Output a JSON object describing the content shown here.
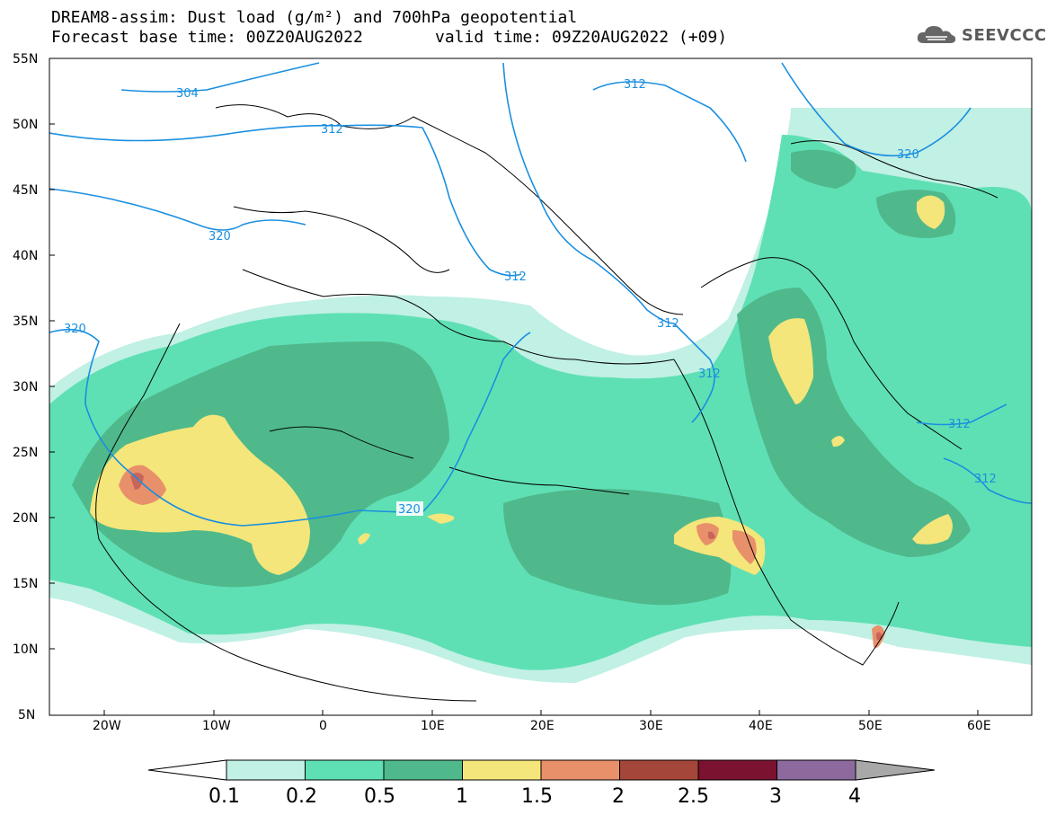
{
  "header": {
    "line1": "DREAM8-assim: Dust load (g/m²) and 700hPa geopotential",
    "line2_left": "Forecast base time: 00Z20AUG2022",
    "line2_right": "valid time: 09Z20AUG2022 (+09)",
    "logo_text": "SEEVCCC"
  },
  "axes": {
    "lat_labels": [
      "55N",
      "50N",
      "45N",
      "40N",
      "35N",
      "30N",
      "25N",
      "20N",
      "15N",
      "10N",
      "5N"
    ],
    "lon_labels": [
      "20W",
      "10W",
      "0",
      "10E",
      "20E",
      "30E",
      "40E",
      "50E",
      "60E"
    ]
  },
  "contour_labels": [
    "304",
    "312",
    "312",
    "320",
    "320",
    "312",
    "312",
    "312",
    "320",
    "312",
    "312"
  ],
  "colorbar": {
    "ticks": [
      "0.1",
      "0.2",
      "0.5",
      "1",
      "1.5",
      "2",
      "2.5",
      "3",
      "4"
    ],
    "colors": [
      "#c1f0e4",
      "#5fe0b4",
      "#4fb98c",
      "#f4e67a",
      "#e8906a",
      "#a4463a",
      "#7a1230",
      "#8c6a9e",
      "#a8a8a8"
    ]
  },
  "dust_colors": {
    "light": "#c1f0e4",
    "medium": "#5fe0b4",
    "dark": "#4fb98c",
    "yellow": "#f4e67a",
    "orange": "#e8906a",
    "red": "#c8645a"
  },
  "contour_color": "#1a8fe0"
}
